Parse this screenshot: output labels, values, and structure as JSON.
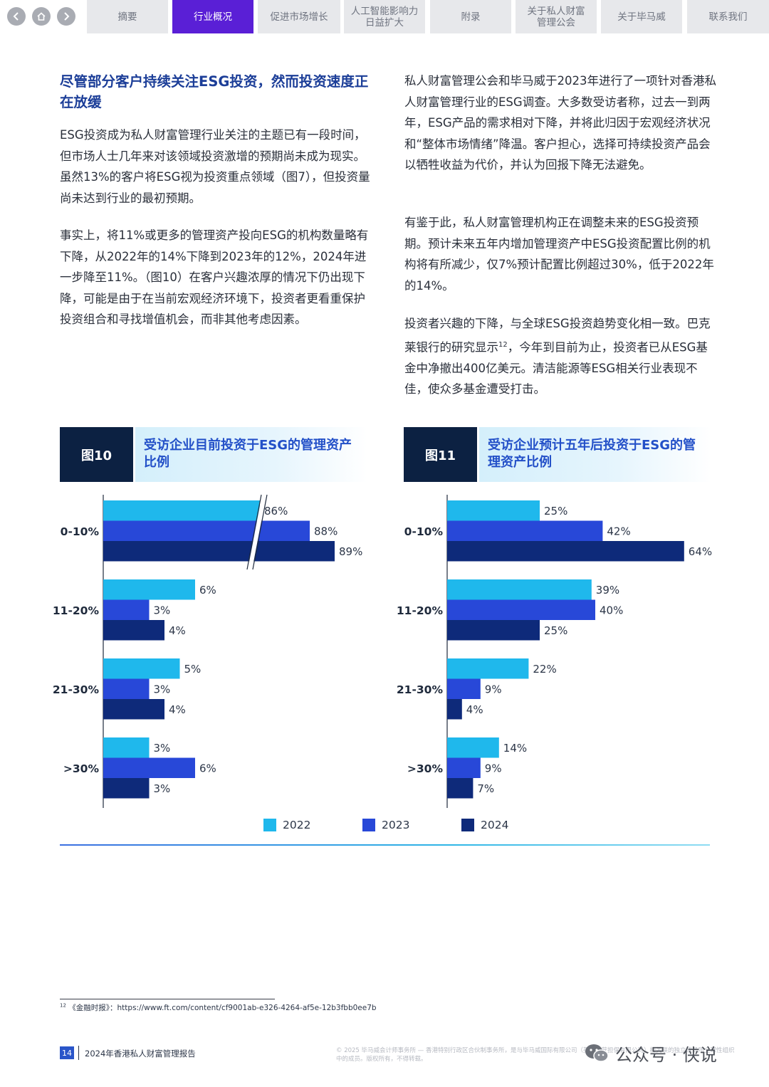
{
  "nav": {
    "tabs": [
      {
        "label": "摘要",
        "active": false
      },
      {
        "label": "行业概况",
        "active": true
      },
      {
        "label": "促进市场增长",
        "active": false
      },
      {
        "label": "人工智能影响力\n日益扩大",
        "active": false
      },
      {
        "label": "附录",
        "active": false
      },
      {
        "label": "关于私人财富\n管理公会",
        "active": false
      },
      {
        "label": "关于毕马威",
        "active": false
      },
      {
        "label": "联系我们",
        "active": false
      }
    ],
    "buttons": [
      "back-icon",
      "home-icon",
      "forward-icon"
    ]
  },
  "left": {
    "heading": "尽管部分客户持续关注ESG投资，然而投资速度正在放缓",
    "p1": "ESG投资成为私人财富管理行业关注的主题已有一段时间，但市场人士几年来对该领域投资激增的预期尚未成为现实。虽然13%的客户将ESG视为投资重点领域（图7），但投资量尚未达到行业的最初预期。",
    "p2": "事实上，将11%或更多的管理资产投向ESG的机构数量略有下降，从2022年的14%下降到2023年的12%，2024年进一步降至11%。（图10）在客户兴趣浓厚的情况下仍出现下降，可能是由于在当前宏观经济环境下，投资者更看重保护投资组合和寻找增值机会，而非其他考虑因素。"
  },
  "right": {
    "p1": "私人财富管理公会和毕马威于2023年进行了一项针对香港私人财富管理行业的ESG调查。大多数受访者称，过去一到两年，ESG产品的需求相对下降，并将此归因于宏观经济状况和“整体市场情绪”降温。客户担心，选择可持续投资产品会以牺牲收益为代价，并认为回报下降无法避免。",
    "p2": "有鉴于此，私人财富管理机构正在调整未来的ESG投资预期。预计未来五年内增加管理资产中ESG投资配置比例的机构将有所减少，仅7%预计配置比例超过30%，低于2022年的14%。",
    "p3_before": "投资者兴趣的下降，与全球ESG投资趋势变化相一致。巴克莱银行的研究显示",
    "p3_sup": "12",
    "p3_after": "，今年到目前为止，投资者已从ESG基金中净撤出400亿美元。清洁能源等ESG相关行业表现不佳，使众多基金遭受打击。"
  },
  "figures": {
    "fig10": {
      "num": "图10",
      "title": "受访企业目前投资于ESG的管理资产比例"
    },
    "fig11": {
      "num": "图11",
      "title": "受访企业预计五年后投资于ESG的管理资产比例"
    }
  },
  "chart_data": [
    {
      "type": "bar",
      "orientation": "horizontal",
      "title": "受访企业目前投资于ESG的管理资产比例",
      "categories": [
        "0-10%",
        "11-20%",
        "21-30%",
        ">30%"
      ],
      "series": [
        {
          "name": "2022",
          "values": [
            86,
            6,
            5,
            3
          ],
          "color": "#1fb8ec"
        },
        {
          "name": "2023",
          "values": [
            88,
            3,
            3,
            6
          ],
          "color": "#2848d8"
        },
        {
          "name": "2024",
          "values": [
            89,
            4,
            4,
            3
          ],
          "color": "#0e2a7a"
        }
      ],
      "axis_break": true,
      "unit": "%"
    },
    {
      "type": "bar",
      "orientation": "horizontal",
      "title": "受访企业预计五年后投资于ESG的管理资产比例",
      "categories": [
        "0-10%",
        "11-20%",
        "21-30%",
        ">30%"
      ],
      "series": [
        {
          "name": "2022",
          "values": [
            25,
            39,
            22,
            14
          ],
          "color": "#1fb8ec"
        },
        {
          "name": "2023",
          "values": [
            42,
            40,
            9,
            9
          ],
          "color": "#2848d8"
        },
        {
          "name": "2024",
          "values": [
            64,
            25,
            4,
            7
          ],
          "color": "#0e2a7a"
        }
      ],
      "axis_break": false,
      "unit": "%"
    }
  ],
  "legend": [
    "2022",
    "2023",
    "2024"
  ],
  "colors": {
    "y2022": "#1fb8ec",
    "y2023": "#2848d8",
    "y2024": "#0e2a7a",
    "accent": "#5a1fd6",
    "heading": "#1c3e98"
  },
  "footnote": {
    "sup": "12",
    "text": "《金融时报》：https://www.ft.com/content/cf9001ab-e326-4264-af5e-12b3fbb0ee7b"
  },
  "footer": {
    "page": "14",
    "title": "2024年香港私人财富管理报告",
    "copyright": "© 2025 毕马威会计师事务所 — 香港特别行政区合伙制事务所，是与毕马威国际有限公司（英国私营担保有限公司）相关联的独立成员所全球性组织中的成员。版权所有，不得转载。",
    "watermark": "公众号 · 侠说"
  }
}
